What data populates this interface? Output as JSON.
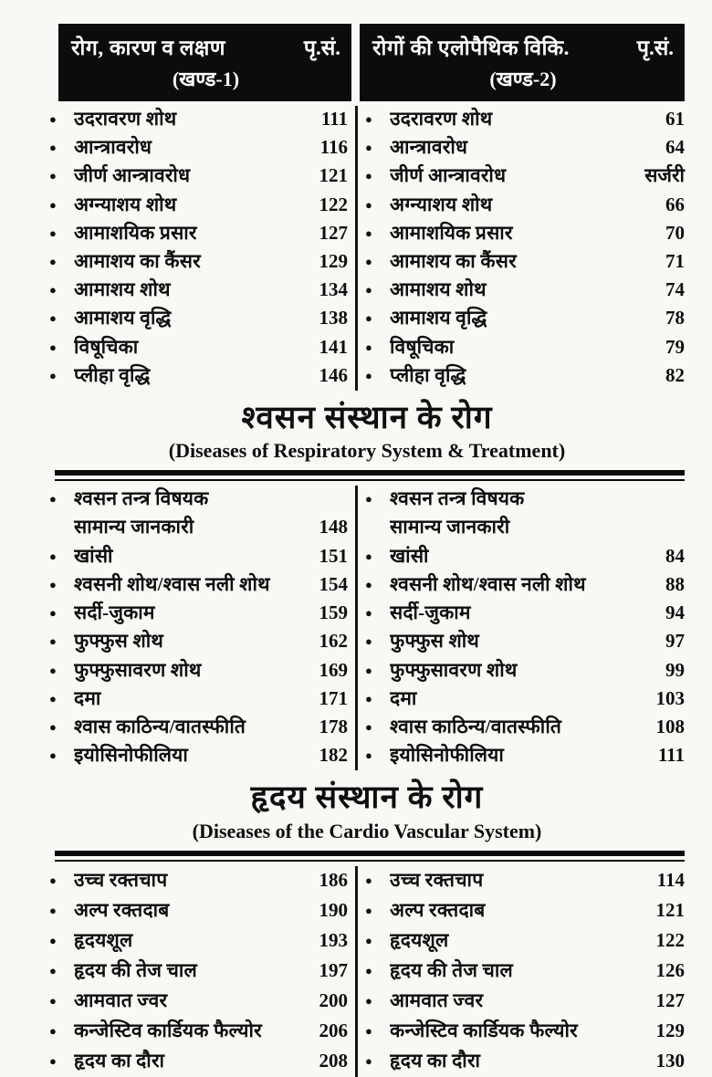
{
  "header": {
    "left": {
      "title": "रोग, कारण व लक्षण",
      "page_col": "पृ.सं.",
      "part": "(खण्ड-1)"
    },
    "right": {
      "title": "रोगों की एलोपैथिक विकि.",
      "page_col": "पृ.सं.",
      "part": "(खण्ड-2)"
    }
  },
  "sections": [
    {
      "id": "abdominal",
      "left": [
        {
          "label": "उदरावरण शोथ",
          "page": "111",
          "bullet": true
        },
        {
          "label": "आन्त्रावरोध",
          "page": "116",
          "bullet": true
        },
        {
          "label": "जीर्ण आन्त्रावरोध",
          "page": "121",
          "bullet": true
        },
        {
          "label": "अग्न्याशय शोथ",
          "page": "122",
          "bullet": true
        },
        {
          "label": "आमाशयिक प्रसार",
          "page": "127",
          "bullet": true
        },
        {
          "label": "आमाशय का कैंसर",
          "page": "129",
          "bullet": true
        },
        {
          "label": "आमाशय शोथ",
          "page": "134",
          "bullet": true
        },
        {
          "label": "आमाशय वृद्धि",
          "page": "138",
          "bullet": true
        },
        {
          "label": "विषूचिका",
          "page": "141",
          "bullet": true
        },
        {
          "label": "प्लीहा वृद्धि",
          "page": "146",
          "bullet": true
        }
      ],
      "right": [
        {
          "label": "उदरावरण शोथ",
          "page": "61",
          "bullet": true
        },
        {
          "label": "आन्त्रावरोध",
          "page": "64",
          "bullet": true
        },
        {
          "label": "जीर्ण आन्त्रावरोध",
          "page": "सर्जरी",
          "bullet": true
        },
        {
          "label": "अग्न्याशय शोथ",
          "page": "66",
          "bullet": true
        },
        {
          "label": "आमाशयिक प्रसार",
          "page": "70",
          "bullet": true
        },
        {
          "label": "आमाशय का कैंसर",
          "page": "71",
          "bullet": true
        },
        {
          "label": "आमाशय शोथ",
          "page": "74",
          "bullet": true
        },
        {
          "label": "आमाशय वृद्धि",
          "page": "78",
          "bullet": true
        },
        {
          "label": "विषूचिका",
          "page": "79",
          "bullet": true
        },
        {
          "label": "प्लीहा वृद्धि",
          "page": "82",
          "bullet": true
        }
      ]
    },
    {
      "id": "respiratory",
      "heading_hi": "श्वसन संस्थान के रोग",
      "heading_en": "(Diseases of Respiratory System & Treatment)",
      "left": [
        {
          "label": "श्वसन तन्त्र विषयक",
          "page": "",
          "bullet": true
        },
        {
          "label": "सामान्य जानकारी",
          "page": "148",
          "bullet": false
        },
        {
          "label": "खांसी",
          "page": "151",
          "bullet": true
        },
        {
          "label": "श्वसनी शोथ/श्वास नली शोथ",
          "page": "154",
          "bullet": true
        },
        {
          "label": "सर्दी-जुकाम",
          "page": "159",
          "bullet": true
        },
        {
          "label": "फुफ्फुस शोथ",
          "page": "162",
          "bullet": true
        },
        {
          "label": "फुफ्फुसावरण शोथ",
          "page": "169",
          "bullet": true
        },
        {
          "label": "दमा",
          "page": "171",
          "bullet": true
        },
        {
          "label": "श्वास काठिन्य/वातस्फीति",
          "page": "178",
          "bullet": true
        },
        {
          "label": "इयोसिनोफीलिया",
          "page": "182",
          "bullet": true
        }
      ],
      "right": [
        {
          "label": "श्वसन तन्त्र विषयक",
          "page": "",
          "bullet": true
        },
        {
          "label": "सामान्य जानकारी",
          "page": "",
          "bullet": false
        },
        {
          "label": "खांसी",
          "page": "84",
          "bullet": true
        },
        {
          "label": "श्वसनी शोथ/श्वास नली शोथ",
          "page": "88",
          "bullet": true
        },
        {
          "label": "सर्दी-जुकाम",
          "page": "94",
          "bullet": true
        },
        {
          "label": "फुफ्फुस शोथ",
          "page": "97",
          "bullet": true
        },
        {
          "label": "फुफ्फुसावरण शोथ",
          "page": "99",
          "bullet": true
        },
        {
          "label": "दमा",
          "page": "103",
          "bullet": true
        },
        {
          "label": "श्वास काठिन्य/वातस्फीति",
          "page": "108",
          "bullet": true
        },
        {
          "label": "इयोसिनोफीलिया",
          "page": "111",
          "bullet": true
        }
      ]
    },
    {
      "id": "cardio",
      "heading_hi": "हृदय संस्थान के रोग",
      "heading_en": "(Diseases of the Cardio Vascular System)",
      "left": [
        {
          "label": "उच्च रक्तचाप",
          "page": "186",
          "bullet": true
        },
        {
          "label": "अल्प रक्तदाब",
          "page": "190",
          "bullet": true
        },
        {
          "label": "हृदयशूल",
          "page": "193",
          "bullet": true
        },
        {
          "label": "हृदय की तेज चाल",
          "page": "197",
          "bullet": true
        },
        {
          "label": "आमवात ज्वर",
          "page": "200",
          "bullet": true
        },
        {
          "label": "कन्जेस्टिव कार्डियक फैल्योर",
          "page": "206",
          "bullet": true
        },
        {
          "label": "हृदय का दौरा",
          "page": "208",
          "bullet": true
        }
      ],
      "right": [
        {
          "label": "उच्च रक्तचाप",
          "page": "114",
          "bullet": true
        },
        {
          "label": "अल्प रक्तदाब",
          "page": "121",
          "bullet": true
        },
        {
          "label": "हृदयशूल",
          "page": "122",
          "bullet": true
        },
        {
          "label": "हृदय की तेज चाल",
          "page": "126",
          "bullet": true
        },
        {
          "label": "आमवात ज्वर",
          "page": "127",
          "bullet": true
        },
        {
          "label": "कन्जेस्टिव कार्डियक फैल्योर",
          "page": "129",
          "bullet": true
        },
        {
          "label": "हृदय का दौरा",
          "page": "130",
          "bullet": true
        }
      ]
    }
  ],
  "colors": {
    "header_bg": "#0c0c0c",
    "text": "#0e0e0e",
    "rule": "#0b0b0b"
  }
}
